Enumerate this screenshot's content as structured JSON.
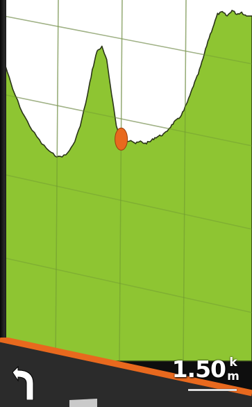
{
  "colors": {
    "sky": "#ffffff",
    "terrain_fill": "#8ec532",
    "terrain_outline": "#2a3418",
    "position_marker": "#e8691e",
    "toolbar_accent": "#e8691e",
    "toolbar_bg": "#2b2b2b"
  },
  "profile": {
    "chart_type": "area",
    "grid": true,
    "points": [
      [
        0.0,
        0.7
      ],
      [
        0.03,
        0.58
      ],
      [
        0.07,
        0.46
      ],
      [
        0.11,
        0.37
      ],
      [
        0.15,
        0.3
      ],
      [
        0.19,
        0.25
      ],
      [
        0.22,
        0.23
      ],
      [
        0.25,
        0.24
      ],
      [
        0.28,
        0.29
      ],
      [
        0.31,
        0.39
      ],
      [
        0.34,
        0.55
      ],
      [
        0.36,
        0.68
      ],
      [
        0.38,
        0.78
      ],
      [
        0.4,
        0.8
      ],
      [
        0.42,
        0.73
      ],
      [
        0.44,
        0.56
      ],
      [
        0.46,
        0.39
      ],
      [
        0.48,
        0.33
      ],
      [
        0.5,
        0.31
      ],
      [
        0.52,
        0.32
      ],
      [
        0.54,
        0.3
      ],
      [
        0.56,
        0.31
      ],
      [
        0.58,
        0.3
      ],
      [
        0.6,
        0.31
      ],
      [
        0.62,
        0.33
      ],
      [
        0.64,
        0.34
      ],
      [
        0.66,
        0.35
      ],
      [
        0.68,
        0.38
      ],
      [
        0.7,
        0.41
      ],
      [
        0.72,
        0.43
      ],
      [
        0.74,
        0.47
      ],
      [
        0.76,
        0.53
      ],
      [
        0.78,
        0.6
      ],
      [
        0.8,
        0.66
      ],
      [
        0.82,
        0.74
      ],
      [
        0.84,
        0.83
      ],
      [
        0.86,
        0.9
      ],
      [
        0.88,
        0.97
      ],
      [
        0.9,
        0.98
      ],
      [
        0.92,
        0.96
      ],
      [
        0.94,
        0.99
      ],
      [
        0.96,
        0.97
      ],
      [
        0.98,
        0.98
      ],
      [
        1.0,
        0.96
      ]
    ],
    "current_position": [
      0.48,
      0.33
    ]
  },
  "toolbar": {
    "back_icon": "back-arrow-icon",
    "zoom_value": "1.50",
    "zoom_unit_top": "k",
    "zoom_unit_bottom": "m"
  }
}
